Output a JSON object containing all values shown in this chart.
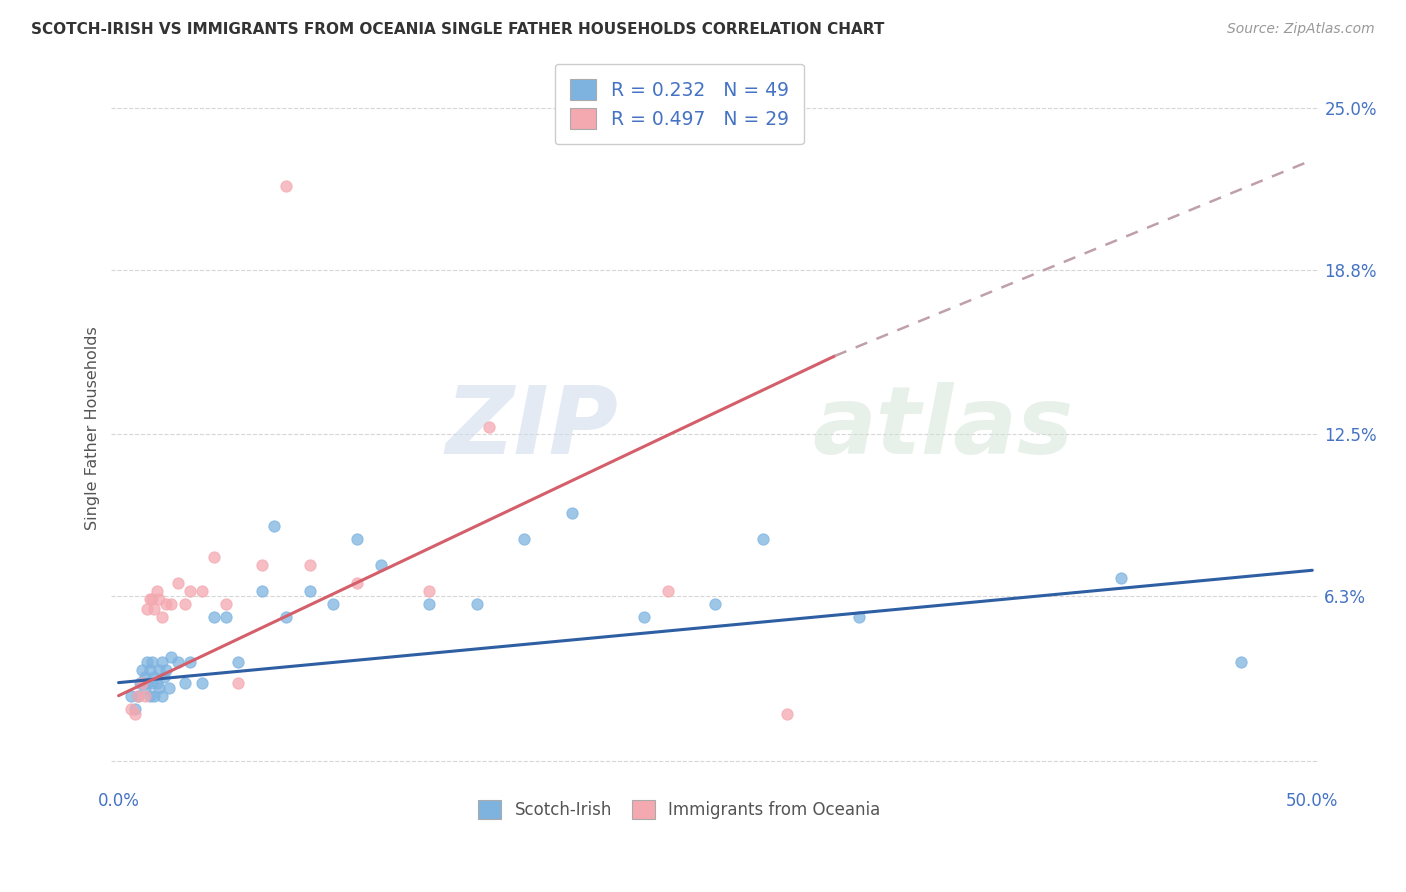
{
  "title": "SCOTCH-IRISH VS IMMIGRANTS FROM OCEANIA SINGLE FATHER HOUSEHOLDS CORRELATION CHART",
  "source": "Source: ZipAtlas.com",
  "ylabel": "Single Father Households",
  "blue_color": "#7eb3e0",
  "pink_color": "#f4a8b0",
  "blue_line_color": "#2e5fa3",
  "pink_line_color": "#d45f6a",
  "pink_dash_color": "#c0a0a8",
  "title_color": "#333333",
  "axis_label_color": "#555555",
  "tick_color": "#4472c4",
  "legend_text_color": "#4472c4",
  "legend_r_color": "#222222",
  "R_blue": 0.232,
  "N_blue": 49,
  "R_pink": 0.497,
  "N_pink": 29,
  "legend_label_blue": "Scotch-Irish",
  "legend_label_pink": "Immigrants from Oceania",
  "xmin": 0.0,
  "xmax": 0.5,
  "ymin": -0.01,
  "ymax": 0.265,
  "yticks": [
    0.0,
    0.063,
    0.125,
    0.188,
    0.25
  ],
  "ytick_labels": [
    "",
    "6.3%",
    "12.5%",
    "18.8%",
    "25.0%"
  ],
  "xticks": [
    0.0,
    0.125,
    0.25,
    0.375,
    0.5
  ],
  "xtick_labels": [
    "0.0%",
    "",
    "",
    "",
    "50.0%"
  ],
  "blue_scatter_x": [
    0.005,
    0.007,
    0.008,
    0.009,
    0.01,
    0.01,
    0.011,
    0.011,
    0.012,
    0.012,
    0.013,
    0.013,
    0.014,
    0.014,
    0.015,
    0.015,
    0.016,
    0.017,
    0.017,
    0.018,
    0.018,
    0.019,
    0.02,
    0.021,
    0.022,
    0.025,
    0.028,
    0.03,
    0.035,
    0.04,
    0.045,
    0.05,
    0.06,
    0.065,
    0.07,
    0.08,
    0.09,
    0.1,
    0.11,
    0.13,
    0.15,
    0.17,
    0.19,
    0.22,
    0.25,
    0.27,
    0.31,
    0.42,
    0.47
  ],
  "blue_scatter_y": [
    0.025,
    0.02,
    0.025,
    0.03,
    0.03,
    0.035,
    0.028,
    0.032,
    0.03,
    0.038,
    0.025,
    0.035,
    0.03,
    0.038,
    0.025,
    0.032,
    0.03,
    0.028,
    0.035,
    0.025,
    0.038,
    0.032,
    0.035,
    0.028,
    0.04,
    0.038,
    0.03,
    0.038,
    0.03,
    0.055,
    0.055,
    0.038,
    0.065,
    0.09,
    0.055,
    0.065,
    0.06,
    0.085,
    0.075,
    0.06,
    0.06,
    0.085,
    0.095,
    0.055,
    0.06,
    0.085,
    0.055,
    0.07,
    0.038
  ],
  "pink_scatter_x": [
    0.005,
    0.007,
    0.008,
    0.01,
    0.011,
    0.012,
    0.013,
    0.014,
    0.015,
    0.016,
    0.017,
    0.018,
    0.02,
    0.022,
    0.025,
    0.028,
    0.03,
    0.035,
    0.04,
    0.045,
    0.05,
    0.06,
    0.07,
    0.08,
    0.1,
    0.13,
    0.155,
    0.23,
    0.28
  ],
  "pink_scatter_y": [
    0.02,
    0.018,
    0.025,
    0.03,
    0.025,
    0.058,
    0.062,
    0.062,
    0.058,
    0.065,
    0.062,
    0.055,
    0.06,
    0.06,
    0.068,
    0.06,
    0.065,
    0.065,
    0.078,
    0.06,
    0.03,
    0.075,
    0.22,
    0.075,
    0.068,
    0.065,
    0.128,
    0.065,
    0.018
  ],
  "blue_line_x": [
    0.0,
    0.5
  ],
  "blue_line_y": [
    0.03,
    0.073
  ],
  "pink_line_x0": 0.0,
  "pink_line_x1": 0.3,
  "pink_line_x2": 0.5,
  "pink_line_y0": 0.025,
  "pink_line_y1": 0.155,
  "pink_line_y2": 0.23,
  "watermark_zip": "ZIP",
  "watermark_atlas": "atlas",
  "background_color": "#ffffff",
  "grid_color": "#cccccc"
}
